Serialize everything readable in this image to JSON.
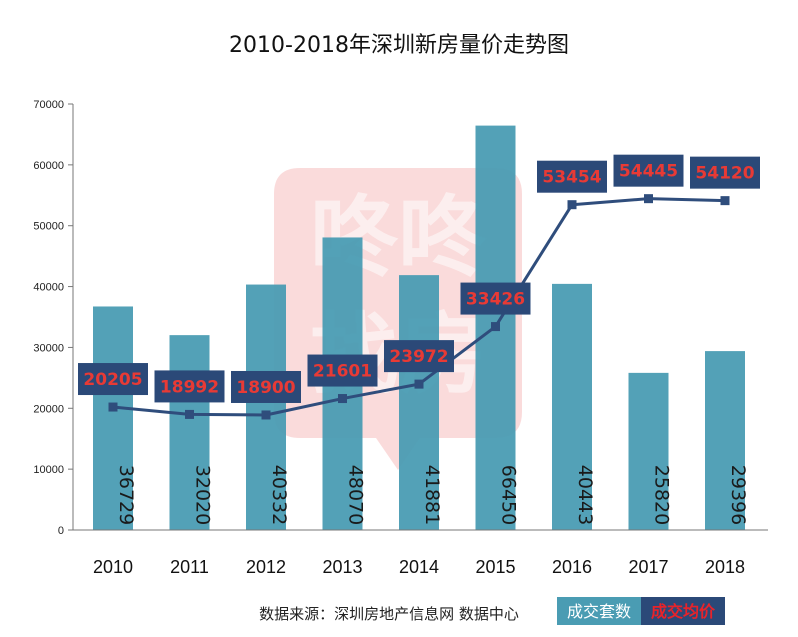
{
  "chart_data": {
    "type": "bar",
    "title": "2010-2018年深圳新房量价走势图",
    "categories": [
      "2010",
      "2011",
      "2012",
      "2013",
      "2014",
      "2015",
      "2016",
      "2017",
      "2018"
    ],
    "ylim": [
      0,
      70000
    ],
    "yticks": [
      "70000",
      "60000",
      "50000",
      "40000",
      "30000",
      "20000",
      "10000",
      "0"
    ],
    "grid": false,
    "legend_position": "bottom-right",
    "series": [
      {
        "name": "成交套数",
        "type": "bar",
        "color": "#4a9cb3",
        "values": [
          36729,
          32020,
          40332,
          48070,
          41881,
          66450,
          40443,
          25820,
          29396
        ]
      },
      {
        "name": "成交均价",
        "type": "line",
        "color": "#2f4d7c",
        "values": [
          20205,
          18992,
          18900,
          21601,
          23972,
          33426,
          53454,
          54445,
          54120
        ]
      }
    ]
  },
  "labels": {
    "bar_values": [
      "36729",
      "32020",
      "40332",
      "48070",
      "41881",
      "66450",
      "40443",
      "25820",
      "29396"
    ],
    "price_values": [
      "20205",
      "18992",
      "18900",
      "21601",
      "23972",
      "33426",
      "53454",
      "54445",
      "54120"
    ]
  },
  "watermark": {
    "top": "咚咚",
    "bottom": "找房"
  },
  "source": "数据来源：深圳房地产信息网 数据中心",
  "legend": {
    "bar": "成交套数",
    "line": "成交均价"
  },
  "colors": {
    "bar": "#4a9cb3",
    "line": "#2f4d7c",
    "label_box": "#2b4978",
    "label_text": "#e83a35",
    "watermark": "#e8595a"
  }
}
